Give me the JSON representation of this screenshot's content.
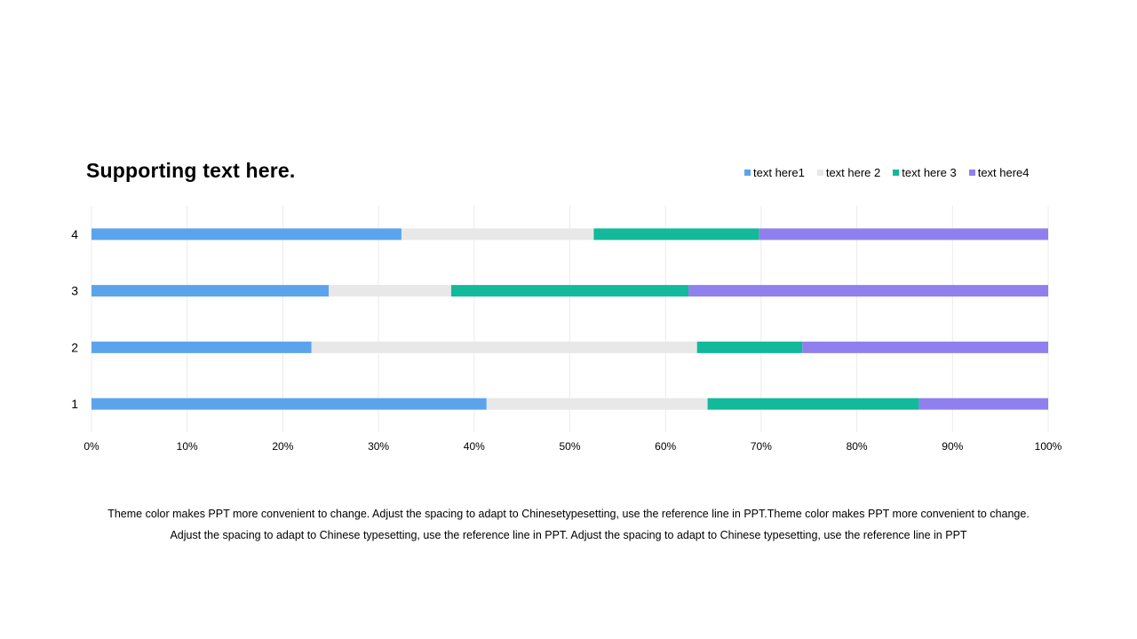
{
  "title": "Supporting text here.",
  "body_lines": [
    "Theme color makes PPT more convenient  to change.  Adjust  the spacing  to adapt to Chinesetypesetting,  use  the reference line  in  PPT.Theme color makes PPT more convenient  to change.",
    "Adjust  the spacing  to adapt to Chinese  typesetting,  use  the  reference  line  in  PPT.  Adjust  the spacing  to adapt to Chinese  typesetting, use  the reference line  in  PPT"
  ],
  "chart_data": {
    "type": "bar",
    "orientation": "horizontal",
    "stacked": "percent",
    "categories": [
      "1",
      "2",
      "3",
      "4"
    ],
    "series": [
      {
        "name": "text here1",
        "color": "#5BA4EC",
        "values": [
          41.3,
          23.0,
          24.8,
          32.4
        ]
      },
      {
        "name": "text here 2",
        "color": "#E8E8E8",
        "values": [
          23.1,
          40.3,
          12.8,
          20.1
        ]
      },
      {
        "name": "text here 3",
        "color": "#12B99A",
        "values": [
          22.1,
          11.0,
          24.8,
          17.3
        ]
      },
      {
        "name": "text here4",
        "color": "#8F80EE",
        "values": [
          13.5,
          25.7,
          37.6,
          30.2
        ]
      }
    ],
    "x_ticks": [
      "0%",
      "10%",
      "20%",
      "30%",
      "40%",
      "50%",
      "60%",
      "70%",
      "80%",
      "90%",
      "100%"
    ],
    "xlim": [
      0,
      100
    ],
    "grid": true,
    "legend_position": "top-right"
  }
}
